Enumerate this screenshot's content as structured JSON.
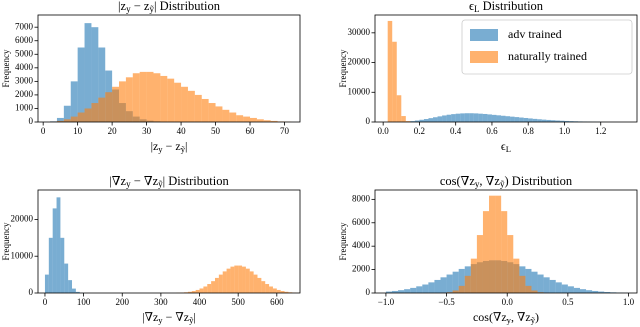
{
  "chart_data": [
    {
      "type": "histogram",
      "title": "|z_y − z_ỹ| Distribution",
      "xlabel": "|z_y − z_ỹ|",
      "ylabel": "Frequency",
      "xlim": [
        -1.5,
        74.5
      ],
      "ylim": [
        0,
        7900
      ],
      "xticks": [
        0,
        10,
        20,
        30,
        40,
        50,
        60,
        70
      ],
      "yticks": [
        0,
        1000,
        2000,
        3000,
        4000,
        5000,
        6000,
        7000
      ],
      "alpha": 0.6,
      "bins": [
        0,
        2,
        4,
        6,
        8,
        10,
        12,
        14,
        16,
        18,
        20,
        22,
        24,
        26,
        28,
        30,
        32,
        34,
        36,
        38,
        40,
        42,
        44,
        46,
        48,
        50,
        52,
        54,
        56,
        58,
        60,
        62,
        64,
        66,
        68,
        70,
        72
      ],
      "series": [
        {
          "color": "#1f77b4",
          "values": [
            0,
            50,
            300,
            1200,
            3000,
            5500,
            7300,
            7000,
            5500,
            3800,
            2400,
            1400,
            800,
            400,
            200,
            100,
            50,
            0,
            0,
            0,
            0,
            0,
            0,
            0,
            0,
            0,
            0,
            0,
            0,
            0,
            0,
            0,
            0,
            0,
            0,
            0
          ]
        },
        {
          "color": "#ff7f0e",
          "values": [
            0,
            20,
            80,
            200,
            400,
            700,
            1000,
            1400,
            1800,
            2200,
            2600,
            3000,
            3300,
            3600,
            3700,
            3700,
            3600,
            3400,
            3200,
            2900,
            2600,
            2300,
            2000,
            1700,
            1400,
            1150,
            900,
            700,
            500,
            400,
            300,
            200,
            130,
            80,
            40,
            20
          ]
        }
      ]
    },
    {
      "type": "histogram",
      "title": "ϵ_L Distribution",
      "xlabel": "ϵ_L",
      "ylabel": "Frequency",
      "xlim": [
        -0.045,
        1.4
      ],
      "ylim": [
        0,
        36000
      ],
      "xticks": [
        {
          "value": 0,
          "label": "0.0"
        },
        {
          "value": 0.2,
          "label": "0.2"
        },
        {
          "value": 0.4,
          "label": "0.4"
        },
        {
          "value": 0.6,
          "label": "0.6"
        },
        {
          "value": 0.8,
          "label": "0.8"
        },
        {
          "value": 1,
          "label": "1.0"
        },
        {
          "value": 1.2,
          "label": "1.2"
        }
      ],
      "yticks": [
        0,
        10000,
        20000,
        30000
      ],
      "alpha": 0.6,
      "legend": "upper right",
      "bins": [
        0,
        0.025,
        0.05,
        0.075,
        0.1,
        0.125,
        0.15,
        0.175,
        0.2,
        0.225,
        0.25,
        0.275,
        0.3,
        0.325,
        0.35,
        0.375,
        0.4,
        0.425,
        0.45,
        0.475,
        0.5,
        0.525,
        0.55,
        0.575,
        0.6,
        0.625,
        0.65,
        0.675,
        0.7,
        0.725,
        0.75,
        0.775,
        0.8,
        0.825,
        0.85,
        0.875,
        0.9,
        0.925,
        0.95,
        0.975,
        1,
        1.025,
        1.05,
        1.075,
        1.1,
        1.125,
        1.15,
        1.175,
        1.2,
        1.225,
        1.25,
        1.275,
        1.3
      ],
      "series": [
        {
          "name": "adv trained",
          "color": "#1f77b4",
          "values": [
            0,
            0,
            0,
            10,
            50,
            150,
            300,
            500,
            750,
            1000,
            1300,
            1600,
            1900,
            2200,
            2450,
            2650,
            2800,
            2900,
            2950,
            2950,
            2900,
            2800,
            2700,
            2550,
            2400,
            2250,
            2100,
            1950,
            1800,
            1650,
            1500,
            1350,
            1200,
            1050,
            920,
            800,
            690,
            590,
            500,
            420,
            350,
            290,
            240,
            190,
            150,
            115,
            85,
            60,
            40,
            25,
            15,
            8
          ]
        },
        {
          "name": "naturally trained",
          "color": "#ff7f0e",
          "values": [
            0,
            34000,
            27000,
            9000,
            2000,
            300,
            0,
            0,
            0,
            0,
            0,
            0,
            0,
            0,
            0,
            0,
            0,
            0,
            0,
            0,
            0,
            0,
            0,
            0,
            0,
            0,
            0,
            0,
            0,
            0,
            0,
            0,
            0,
            0,
            0,
            0,
            0,
            0,
            0,
            0,
            0,
            0,
            0,
            0,
            0,
            0,
            0,
            0,
            0,
            0,
            0,
            0
          ]
        }
      ]
    },
    {
      "type": "histogram",
      "title": "|∇z_y − ∇z_ỹ| Distribution",
      "xlabel": "|∇z_y − ∇z_ỹ|",
      "ylabel": "Frequency",
      "xlim": [
        -18,
        660
      ],
      "ylim": [
        0,
        28000
      ],
      "xticks": [
        0,
        100,
        200,
        300,
        400,
        500,
        600
      ],
      "yticks": [
        0,
        10000,
        20000
      ],
      "alpha": 0.6,
      "bins": [
        0,
        10,
        20,
        30,
        40,
        50,
        60,
        70,
        80,
        90,
        100,
        110,
        120,
        130,
        140,
        150,
        160,
        170,
        180,
        190,
        200,
        210,
        220,
        230,
        240,
        250,
        260,
        270,
        280,
        290,
        300,
        310,
        320,
        330,
        340,
        350,
        360,
        370,
        380,
        390,
        400,
        410,
        420,
        430,
        440,
        450,
        460,
        470,
        480,
        490,
        500,
        510,
        520,
        530,
        540,
        550,
        560,
        570,
        580,
        590,
        600,
        610,
        620,
        630,
        640,
        650,
        660
      ],
      "series": [
        {
          "color": "#1f77b4",
          "values": [
            5000,
            15000,
            23000,
            26000,
            15000,
            8000,
            3500,
            1200,
            300,
            50,
            0,
            0,
            0,
            0,
            0,
            0,
            0,
            0,
            0,
            0,
            0,
            0,
            0,
            0,
            0,
            0,
            0,
            0,
            0,
            0,
            0,
            0,
            0,
            0,
            0,
            0,
            0,
            0,
            0,
            0,
            0,
            0,
            0,
            0,
            0,
            0,
            0,
            0,
            0,
            0,
            0,
            0,
            0,
            0,
            0,
            0,
            0,
            0,
            0,
            0,
            0,
            0,
            0,
            0,
            0,
            0
          ]
        },
        {
          "color": "#ff7f0e",
          "values": [
            0,
            0,
            0,
            0,
            0,
            0,
            0,
            0,
            0,
            0,
            0,
            0,
            0,
            0,
            0,
            0,
            0,
            0,
            0,
            0,
            0,
            0,
            0,
            0,
            0,
            0,
            0,
            0,
            0,
            0,
            0,
            0,
            0,
            0,
            60,
            110,
            195,
            330,
            530,
            830,
            1230,
            1770,
            2440,
            3220,
            4100,
            5000,
            5870,
            6620,
            7170,
            7460,
            7460,
            7170,
            6620,
            5870,
            5000,
            4100,
            3220,
            2440,
            1770,
            1230,
            830,
            530,
            330,
            195,
            110,
            60
          ]
        }
      ]
    },
    {
      "type": "histogram",
      "title": "cos(∇z_y, ∇z_ỹ) Distribution",
      "xlabel": "cos(∇z_y, ∇z_ỹ)",
      "ylabel": "Frequency",
      "xlim": [
        -1.09,
        1.07
      ],
      "ylim": [
        0,
        8800
      ],
      "xticks": [
        {
          "value": -1,
          "label": "−1.0"
        },
        {
          "value": -0.5,
          "label": "−0.5"
        },
        {
          "value": 0,
          "label": "0.0"
        },
        {
          "value": 0.5,
          "label": "0.5"
        },
        {
          "value": 1,
          "label": "1.0"
        }
      ],
      "yticks": [
        0,
        2000,
        4000,
        6000,
        8000
      ],
      "alpha": 0.6,
      "bins": [
        -1,
        -0.95,
        -0.9,
        -0.85,
        -0.8,
        -0.75,
        -0.7,
        -0.65,
        -0.6,
        -0.55,
        -0.5,
        -0.45,
        -0.4,
        -0.35,
        -0.3,
        -0.25,
        -0.2,
        -0.15,
        -0.1,
        -0.05,
        0,
        0.05,
        0.1,
        0.15,
        0.2,
        0.25,
        0.3,
        0.35,
        0.4,
        0.45,
        0.5,
        0.55,
        0.6,
        0.65,
        0.7,
        0.75,
        0.8,
        0.85,
        0.9,
        0.95,
        1
      ],
      "series": [
        {
          "color": "#1f77b4",
          "values": [
            123,
            174,
            241,
            327,
            436,
            570,
            725,
            909,
            1115,
            1340,
            1577,
            1820,
            2056,
            2277,
            2471,
            2627,
            2736,
            2793,
            2793,
            2736,
            2627,
            2471,
            2277,
            2056,
            1820,
            1577,
            1340,
            1115,
            909,
            725,
            570,
            436,
            327,
            241,
            174,
            123,
            85,
            58,
            38,
            25
          ]
        },
        {
          "color": "#ff7f0e",
          "values": [
            0,
            0,
            0,
            0,
            0,
            0,
            0,
            0,
            0,
            16,
            65,
            215,
            610,
            1465,
            2935,
            4950,
            6995,
            8315,
            8315,
            6995,
            4950,
            2935,
            1465,
            610,
            215,
            65,
            16,
            0,
            0,
            0,
            0,
            0,
            0,
            0,
            0,
            0,
            0,
            0,
            0,
            0
          ]
        }
      ]
    }
  ]
}
